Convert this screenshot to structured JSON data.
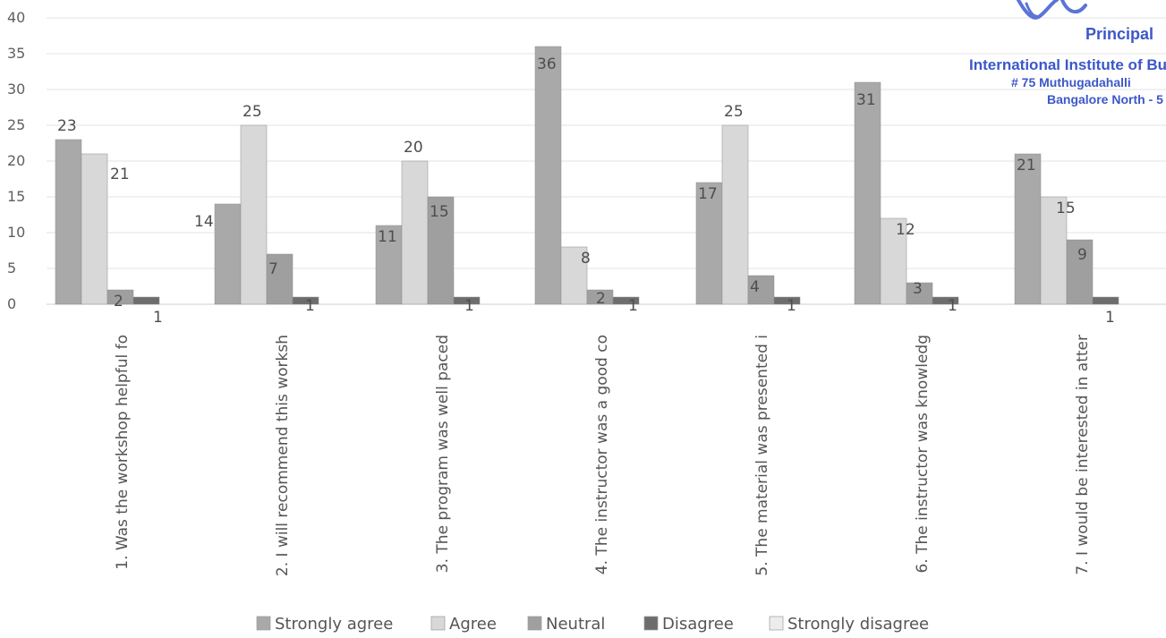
{
  "chart_data": {
    "type": "bar",
    "categories": [
      "1. Was the workshop helpful fo",
      "2. I will recommend this worksh",
      "3. The program was well paced",
      "4. The instructor was a good co",
      "5. The material was presented i",
      "6. The instructor was knowledg",
      "7. I would be interested in atter"
    ],
    "series": [
      {
        "name": "Strongly agree",
        "values": [
          23,
          14,
          11,
          36,
          17,
          31,
          21
        ],
        "color": "#a9a9a9"
      },
      {
        "name": "Agree",
        "values": [
          21,
          25,
          20,
          8,
          25,
          12,
          15
        ],
        "color": "#d8d8d8"
      },
      {
        "name": "Neutral",
        "values": [
          2,
          7,
          15,
          2,
          4,
          3,
          9
        ],
        "color": "#9f9f9f"
      },
      {
        "name": "Disagree",
        "values": [
          1,
          1,
          1,
          1,
          1,
          1,
          1
        ],
        "color": "#6d6d6d"
      },
      {
        "name": "Strongly disagree",
        "values": [
          0,
          0,
          0,
          0,
          0,
          0,
          0
        ],
        "color": "#ececec"
      }
    ],
    "y_ticks": [
      "0",
      "5",
      "10",
      "15",
      "20",
      "25",
      "30",
      "35",
      "40"
    ],
    "ylim": [
      0,
      40
    ],
    "grid": true,
    "legend_position": "bottom"
  },
  "stamp": {
    "line1": "Principal",
    "line2": "International Institute of Bu",
    "line3": "# 75  Muthugadahalli",
    "line4": "Bangalore North - 5",
    "color": "#3c57c9"
  }
}
